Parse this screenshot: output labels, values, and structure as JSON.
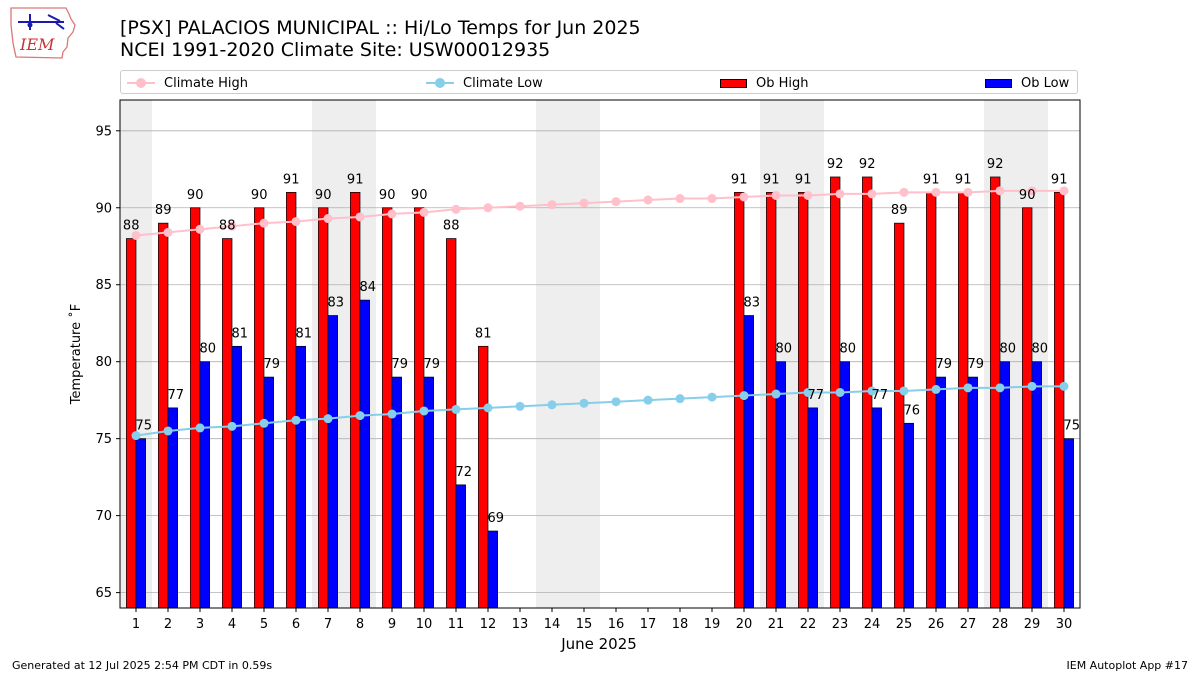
{
  "header": {
    "title_line1": "[PSX] PALACIOS MUNICIPAL :: Hi/Lo Temps for Jun 2025",
    "title_line2": "NCEI 1991-2020 Climate Site: USW00012935",
    "logo_text": "IEM"
  },
  "legend": {
    "climate_high": "Climate High",
    "climate_low": "Climate Low",
    "ob_high": "Ob High",
    "ob_low": "Ob Low"
  },
  "footer": {
    "generated": "Generated at 12 Jul 2025 2:54 PM CDT in 0.59s",
    "app": "IEM Autoplot App #17"
  },
  "colors": {
    "ob_high": "#ff0000",
    "ob_low": "#0000ff",
    "climate_high": "#ffc0cb",
    "climate_low": "#87ceeb",
    "weekend_band": "#eeeeee",
    "grid": "#b0b0b0"
  },
  "chart_data": {
    "type": "bar",
    "xlabel": "June 2025",
    "ylabel": "Temperature ˚F",
    "ylim": [
      64,
      97
    ],
    "yticks": [
      65,
      70,
      75,
      80,
      85,
      90,
      95
    ],
    "categories": [
      "1",
      "2",
      "3",
      "4",
      "5",
      "6",
      "7",
      "8",
      "9",
      "10",
      "11",
      "12",
      "13",
      "14",
      "15",
      "16",
      "17",
      "18",
      "19",
      "20",
      "21",
      "22",
      "23",
      "24",
      "25",
      "26",
      "27",
      "28",
      "29",
      "30"
    ],
    "weekend_days": [
      1,
      7,
      8,
      14,
      15,
      21,
      22,
      28,
      29
    ],
    "series": [
      {
        "name": "Ob High",
        "kind": "bar",
        "values": [
          88,
          89,
          90,
          88,
          90,
          91,
          90,
          91,
          90,
          90,
          88,
          81,
          null,
          null,
          null,
          null,
          null,
          null,
          null,
          91,
          91,
          91,
          92,
          92,
          89,
          91,
          91,
          92,
          90,
          91
        ]
      },
      {
        "name": "Ob Low",
        "kind": "bar",
        "values": [
          75,
          77,
          80,
          81,
          79,
          81,
          83,
          84,
          79,
          79,
          72,
          69,
          null,
          null,
          null,
          null,
          null,
          null,
          null,
          83,
          80,
          77,
          80,
          77,
          76,
          79,
          79,
          80,
          80,
          75
        ]
      },
      {
        "name": "Climate High",
        "kind": "line",
        "values": [
          88.2,
          88.4,
          88.6,
          88.8,
          89.0,
          89.1,
          89.3,
          89.4,
          89.6,
          89.7,
          89.9,
          90.0,
          90.1,
          90.2,
          90.3,
          90.4,
          90.5,
          90.6,
          90.6,
          90.7,
          90.8,
          90.8,
          90.9,
          90.9,
          91.0,
          91.0,
          91.0,
          91.1,
          91.1,
          91.1
        ]
      },
      {
        "name": "Climate Low",
        "kind": "line",
        "values": [
          75.2,
          75.5,
          75.7,
          75.8,
          76.0,
          76.2,
          76.3,
          76.5,
          76.6,
          76.8,
          76.9,
          77.0,
          77.1,
          77.2,
          77.3,
          77.4,
          77.5,
          77.6,
          77.7,
          77.8,
          77.9,
          78.0,
          78.0,
          78.1,
          78.1,
          78.2,
          78.3,
          78.3,
          78.4,
          78.4
        ]
      }
    ]
  }
}
